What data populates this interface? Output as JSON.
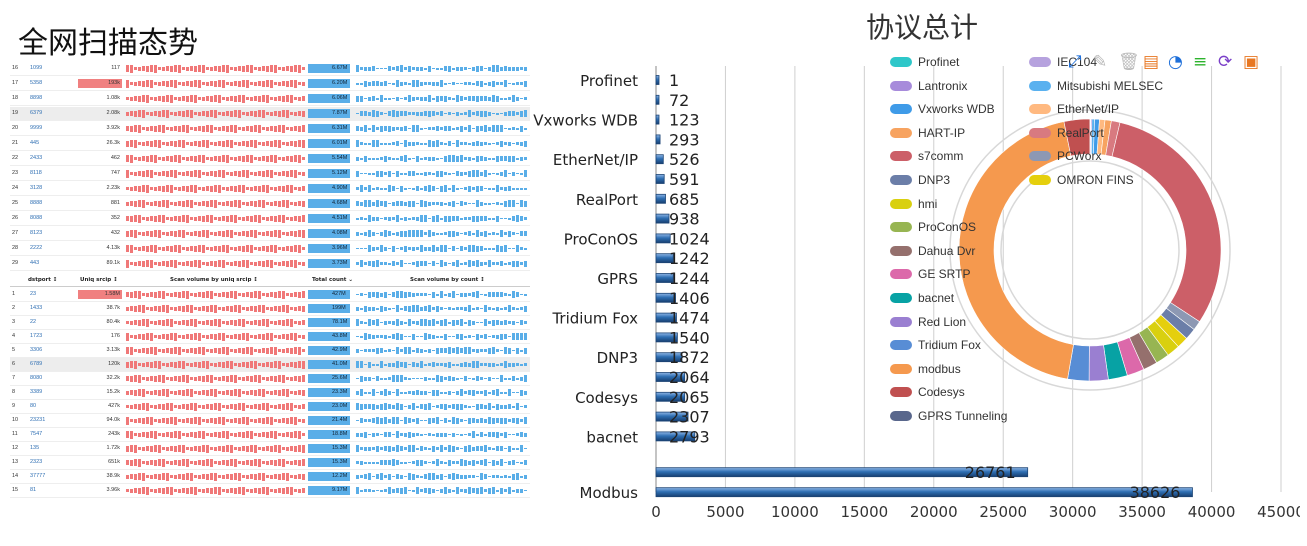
{
  "titles": {
    "left": "全网扫描态势",
    "right": "协议总计"
  },
  "scan_table": {
    "top_rows": [
      {
        "idx": "16",
        "port": "1099",
        "count": "117",
        "total": "6.67M",
        "hl": false
      },
      {
        "idx": "17",
        "port": "5358",
        "count": "193k",
        "total": "6.20M",
        "hl": true
      },
      {
        "idx": "18",
        "port": "8898",
        "count": "1.08k",
        "total": "6.06M",
        "hl": false
      },
      {
        "idx": "19",
        "port": "6379",
        "count": "2.08k",
        "total": "7.87M",
        "hl": false
      },
      {
        "idx": "20",
        "port": "9999",
        "count": "3.92k",
        "total": "6.31M",
        "hl": false
      },
      {
        "idx": "21",
        "port": "445",
        "count": "26.3k",
        "total": "6.01M",
        "hl": false
      },
      {
        "idx": "22",
        "port": "2433",
        "count": "462",
        "total": "5.54M",
        "hl": false
      },
      {
        "idx": "23",
        "port": "8118",
        "count": "747",
        "total": "5.12M",
        "hl": false
      },
      {
        "idx": "24",
        "port": "3128",
        "count": "2.23k",
        "total": "4.90M",
        "hl": false
      },
      {
        "idx": "25",
        "port": "8888",
        "count": "881",
        "total": "4.68M",
        "hl": false
      },
      {
        "idx": "26",
        "port": "8088",
        "count": "352",
        "total": "4.51M",
        "hl": false
      },
      {
        "idx": "27",
        "port": "8123",
        "count": "432",
        "total": "4.08M",
        "hl": false
      },
      {
        "idx": "28",
        "port": "2222",
        "count": "4.13k",
        "total": "3.96M",
        "hl": false
      },
      {
        "idx": "29",
        "port": "443",
        "count": "89.1k",
        "total": "3.73M",
        "hl": false
      }
    ],
    "headers": {
      "port": "dstport ↕",
      "uniq": "Uniq srcip ↕",
      "vol_uniq": "Scan volume by uniq srcip ↕",
      "total": "Total count ⌄",
      "vol_count": "Scan volume by count ↕"
    },
    "bottom_rows": [
      {
        "idx": "1",
        "port": "23",
        "count": "1.58M",
        "total": "427M",
        "hl": true
      },
      {
        "idx": "2",
        "port": "1433",
        "count": "38.7k",
        "total": "199M",
        "hl": false
      },
      {
        "idx": "3",
        "port": "22",
        "count": "80.4k",
        "total": "78.1M",
        "hl": false
      },
      {
        "idx": "4",
        "port": "1723",
        "count": "176",
        "total": "43.8M",
        "hl": false
      },
      {
        "idx": "5",
        "port": "3306",
        "count": "3.13k",
        "total": "42.9M",
        "hl": false
      },
      {
        "idx": "6",
        "port": "6789",
        "count": "120k",
        "total": "41.0M",
        "hl": false
      },
      {
        "idx": "7",
        "port": "8080",
        "count": "32.2k",
        "total": "25.6M",
        "hl": false
      },
      {
        "idx": "8",
        "port": "3389",
        "count": "15.2k",
        "total": "23.3M",
        "hl": false
      },
      {
        "idx": "9",
        "port": "80",
        "count": "427k",
        "total": "23.0M",
        "hl": false
      },
      {
        "idx": "10",
        "port": "23231",
        "count": "94.0k",
        "total": "21.4M",
        "hl": false
      },
      {
        "idx": "11",
        "port": "7547",
        "count": "243k",
        "total": "18.8M",
        "hl": false
      },
      {
        "idx": "12",
        "port": "135",
        "count": "1.72k",
        "total": "15.3M",
        "hl": false
      },
      {
        "idx": "13",
        "port": "2323",
        "count": "651k",
        "total": "15.3M",
        "hl": false
      },
      {
        "idx": "14",
        "port": "37777",
        "count": "38.9k",
        "total": "12.2M",
        "hl": false
      },
      {
        "idx": "15",
        "port": "81",
        "count": "3.96k",
        "total": "9.17M",
        "hl": false
      }
    ]
  },
  "toolbar": {
    "icons": [
      "zoom-icon",
      "pencil-icon",
      "trash-icon",
      "document-icon",
      "pie-icon",
      "filter-icon",
      "refresh-icon",
      "save-icon"
    ],
    "colors": [
      "#1e6fd9",
      "#bbbbbb",
      "#bbbbbb",
      "#e87722",
      "#1e6fd9",
      "#2db32d",
      "#7a3fc8",
      "#e87722"
    ]
  },
  "chart_data": [
    {
      "type": "bar",
      "orientation": "horizontal",
      "categories": [
        "Profinet",
        "",
        "Vxworks WDB",
        "",
        "EtherNet/IP",
        "",
        "RealPort",
        "",
        "ProConOS",
        "",
        "GPRS",
        "",
        "Tridium Fox",
        "",
        "DNP3",
        "",
        "Codesys",
        "",
        "bacnet",
        "",
        "Modbus"
      ],
      "values": [
        1,
        72,
        123,
        293,
        526,
        591,
        685,
        938,
        1024,
        1242,
        1244,
        1406,
        1474,
        1540,
        1872,
        2064,
        2065,
        2307,
        2793,
        26761,
        38626
      ],
      "value_labels": [
        "1",
        "72",
        "123",
        "293",
        "526",
        "591",
        "685",
        "938",
        "1024",
        "1242",
        "1244",
        "1406",
        "1474",
        "1540",
        "1872",
        "2064",
        "2065",
        "2307",
        "2793",
        "26761",
        "38626"
      ],
      "xticks": [
        "0",
        "5000",
        "10000",
        "15000",
        "20000",
        "25000",
        "30000",
        "35000",
        "40000",
        "45000"
      ],
      "xlim": [
        0,
        45000
      ],
      "grid": true,
      "bar_color": "#2f6fb3"
    },
    {
      "type": "pie",
      "style": "donut",
      "title": "协议总计",
      "legend_position": "top-right",
      "slices": [
        {
          "label": "Profinet",
          "value": 1,
          "color": "#2ec7c9"
        },
        {
          "label": "IEC104",
          "value": 72,
          "color": "#b6a2de"
        },
        {
          "label": "Lantronix",
          "value": 123,
          "color": "#a78bdb"
        },
        {
          "label": "Mitsubishi MELSEC",
          "value": 293,
          "color": "#5ab1ef"
        },
        {
          "label": "Vxworks WDB",
          "value": 526,
          "color": "#3f9be8"
        },
        {
          "label": "EtherNet/IP",
          "value": 591,
          "color": "#ffb980"
        },
        {
          "label": "HART-IP",
          "value": 685,
          "color": "#f7a360"
        },
        {
          "label": "RealPort",
          "value": 938,
          "color": "#d87a80"
        },
        {
          "label": "s7comm",
          "value": 26761,
          "color": "#cc5f68"
        },
        {
          "label": "PCWorx",
          "value": 1024,
          "color": "#8d98b3"
        },
        {
          "label": "DNP3",
          "value": 1242,
          "color": "#6b7ea8"
        },
        {
          "label": "OMRON FINS",
          "value": 1244,
          "color": "#e5cf0d"
        },
        {
          "label": "hmi",
          "value": 1406,
          "color": "#d9d00f"
        },
        {
          "label": "ProConOS",
          "value": 1474,
          "color": "#97b552"
        },
        {
          "label": "Dahua Dvr",
          "value": 1540,
          "color": "#95706d"
        },
        {
          "label": "GE SRTP",
          "value": 1872,
          "color": "#dc69aa"
        },
        {
          "label": "bacnet",
          "value": 2064,
          "color": "#07a2a4"
        },
        {
          "label": "Red Lion",
          "value": 2065,
          "color": "#9a7fd1"
        },
        {
          "label": "Tridium Fox",
          "value": 2307,
          "color": "#588dd5"
        },
        {
          "label": "modbus",
          "value": 38626,
          "color": "#f5994e"
        },
        {
          "label": "Codesys",
          "value": 2793,
          "color": "#c05050"
        },
        {
          "label": "GPRS Tunneling",
          "value": 1,
          "color": "#59678c"
        }
      ],
      "legend_left": [
        "Profinet",
        "Lantronix",
        "Vxworks WDB",
        "HART-IP",
        "s7comm",
        "DNP3",
        "hmi",
        "ProConOS",
        "Dahua Dvr",
        "GE SRTP",
        "bacnet",
        "Red Lion",
        "Tridium Fox",
        "modbus",
        "Codesys",
        "GPRS Tunneling"
      ],
      "legend_right": [
        "IEC104",
        "Mitsubishi MELSEC",
        "EtherNet/IP",
        "RealPort",
        "PCWorx",
        "OMRON FINS"
      ]
    }
  ]
}
